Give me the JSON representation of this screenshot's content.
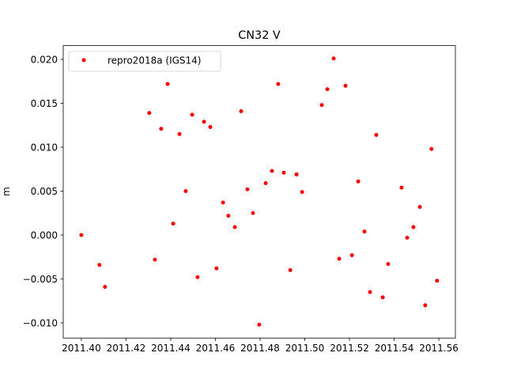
{
  "chart_data": {
    "type": "scatter",
    "title": "CN32 V",
    "xlabel": "",
    "ylabel": "m",
    "xlim": [
      2011.3919,
      2011.5674
    ],
    "ylim": [
      -0.01173,
      0.02157
    ],
    "xticks": [
      2011.4,
      2011.42,
      2011.44,
      2011.46,
      2011.48,
      2011.5,
      2011.52,
      2011.54,
      2011.56
    ],
    "xtick_labels": [
      "2011.40",
      "2011.42",
      "2011.44",
      "2011.46",
      "2011.48",
      "2011.50",
      "2011.52",
      "2011.54",
      "2011.56"
    ],
    "yticks": [
      -0.01,
      -0.005,
      0.0,
      0.005,
      0.01,
      0.015,
      0.02
    ],
    "ytick_labels": [
      "−0.010",
      "−0.005",
      "0.000",
      "0.005",
      "0.010",
      "0.015",
      "0.020"
    ],
    "grid": false,
    "legend": {
      "placement": "top-left",
      "entries": [
        "repro2018a (IGS14)"
      ]
    },
    "series": [
      {
        "name": "repro2018a (IGS14)",
        "color": "#ff0000",
        "x": [
          2011.4,
          2011.4081,
          2011.4106,
          2011.4304,
          2011.4329,
          2011.4357,
          2011.4386,
          2011.4411,
          2011.4439,
          2011.4467,
          2011.4496,
          2011.452,
          2011.4549,
          2011.4577,
          2011.4605,
          2011.4634,
          2011.4658,
          2011.4687,
          2011.4715,
          2011.4743,
          2011.4768,
          2011.4796,
          2011.4825,
          2011.4853,
          2011.4881,
          2011.4906,
          2011.4935,
          2011.4963,
          2011.4988,
          2011.5076,
          2011.5101,
          2011.5129,
          2011.5154,
          2011.5182,
          2011.5211,
          2011.5239,
          2011.5267,
          2011.5292,
          2011.532,
          2011.5349,
          2011.5373,
          2011.5433,
          2011.5458,
          2011.5486,
          2011.5515,
          2011.5539,
          2011.5567,
          2011.5592
        ],
        "y": [
          0.0,
          -0.0034,
          -0.0059,
          0.0139,
          -0.0028,
          0.0121,
          0.0172,
          0.0013,
          0.0115,
          0.005,
          0.0137,
          -0.0048,
          0.0129,
          0.0123,
          -0.0038,
          0.0037,
          0.0022,
          0.0009,
          0.0141,
          0.0052,
          0.0025,
          -0.0102,
          0.0059,
          0.0073,
          0.0172,
          0.0071,
          -0.004,
          0.0069,
          0.0049,
          0.0148,
          0.0166,
          0.0201,
          -0.0027,
          0.017,
          -0.0023,
          0.0061,
          0.0004,
          -0.0065,
          0.0114,
          -0.0071,
          -0.0033,
          0.0054,
          -0.0003,
          0.0009,
          0.0032,
          -0.008,
          0.0098,
          -0.0052
        ]
      }
    ]
  }
}
